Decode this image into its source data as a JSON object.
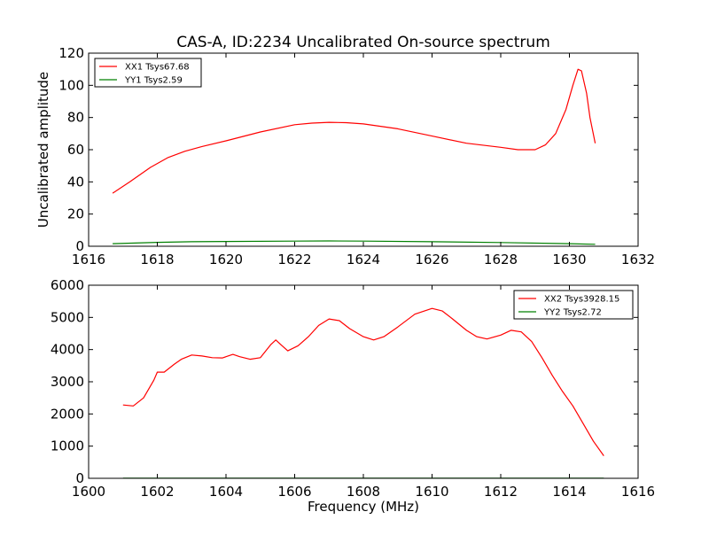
{
  "chart_data": [
    {
      "type": "line",
      "title": "CAS-A, ID:2234 Uncalibrated On-source spectrum",
      "xlabel": "",
      "ylabel": "Uncalibrated amplitude",
      "xlim": [
        1616,
        1632
      ],
      "ylim": [
        0,
        120
      ],
      "xticks": [
        1616,
        1618,
        1620,
        1622,
        1624,
        1626,
        1628,
        1630,
        1632
      ],
      "yticks": [
        0,
        20,
        40,
        60,
        80,
        100,
        120
      ],
      "grid": false,
      "legend_position": "top-left",
      "series": [
        {
          "name": "XX1 Tsys67.68",
          "color": "#ff0000",
          "x": [
            1616.7,
            1617.2,
            1617.8,
            1618.3,
            1618.8,
            1619.3,
            1620.0,
            1621.0,
            1622.0,
            1622.5,
            1623.0,
            1623.5,
            1624.0,
            1625.0,
            1626.0,
            1627.0,
            1628.0,
            1628.5,
            1629.0,
            1629.3,
            1629.6,
            1629.9,
            1630.1,
            1630.25,
            1630.35,
            1630.5,
            1630.6,
            1630.75
          ],
          "values": [
            33,
            40,
            49,
            55,
            59,
            62,
            65.5,
            71,
            75.5,
            76.5,
            77,
            76.8,
            76,
            73,
            68.5,
            64,
            61.5,
            60,
            60,
            63,
            70,
            85,
            100,
            110,
            109,
            95,
            80,
            64
          ]
        },
        {
          "name": "YY1 Tsys2.59",
          "color": "#008000",
          "x": [
            1616.7,
            1618.0,
            1619.0,
            1620.0,
            1622.0,
            1623.0,
            1624.0,
            1626.0,
            1628.0,
            1630.0,
            1630.75
          ],
          "values": [
            1.6,
            2.4,
            2.8,
            3.0,
            3.2,
            3.3,
            3.2,
            2.8,
            2.3,
            1.6,
            1.2
          ]
        }
      ]
    },
    {
      "type": "line",
      "title": "",
      "xlabel": "Frequency (MHz)",
      "ylabel": "",
      "xlim": [
        1600,
        1616
      ],
      "ylim": [
        0,
        6000
      ],
      "xticks": [
        1600,
        1602,
        1604,
        1606,
        1608,
        1610,
        1612,
        1614,
        1616
      ],
      "yticks": [
        0,
        1000,
        2000,
        3000,
        4000,
        5000,
        6000
      ],
      "grid": false,
      "legend_position": "top-right",
      "series": [
        {
          "name": "XX2 Tsys3928.15",
          "color": "#ff0000",
          "x": [
            1601.0,
            1601.3,
            1601.6,
            1601.9,
            1602.0,
            1602.2,
            1602.5,
            1602.7,
            1603.0,
            1603.3,
            1603.6,
            1603.9,
            1604.0,
            1604.2,
            1604.4,
            1604.7,
            1605.0,
            1605.3,
            1605.45,
            1605.6,
            1605.8,
            1606.1,
            1606.4,
            1606.7,
            1607.0,
            1607.3,
            1607.6,
            1608.0,
            1608.3,
            1608.6,
            1609.0,
            1609.5,
            1610.0,
            1610.3,
            1610.6,
            1611.0,
            1611.3,
            1611.6,
            1612.0,
            1612.3,
            1612.6,
            1612.9,
            1613.2,
            1613.5,
            1613.8,
            1614.1,
            1614.4,
            1614.7,
            1615.0
          ],
          "values": [
            2280,
            2250,
            2500,
            3050,
            3300,
            3300,
            3550,
            3700,
            3830,
            3800,
            3750,
            3740,
            3780,
            3850,
            3780,
            3700,
            3750,
            4150,
            4300,
            4150,
            3960,
            4120,
            4400,
            4750,
            4950,
            4900,
            4650,
            4400,
            4300,
            4400,
            4700,
            5100,
            5280,
            5200,
            4950,
            4600,
            4400,
            4330,
            4450,
            4600,
            4550,
            4250,
            3750,
            3200,
            2700,
            2250,
            1700,
            1150,
            700
          ]
        },
        {
          "name": "YY2 Tsys2.72",
          "color": "#008000",
          "x": [
            1601.0,
            1605.0,
            1610.0,
            1615.0
          ],
          "values": [
            3,
            3,
            3,
            3
          ]
        }
      ]
    }
  ]
}
